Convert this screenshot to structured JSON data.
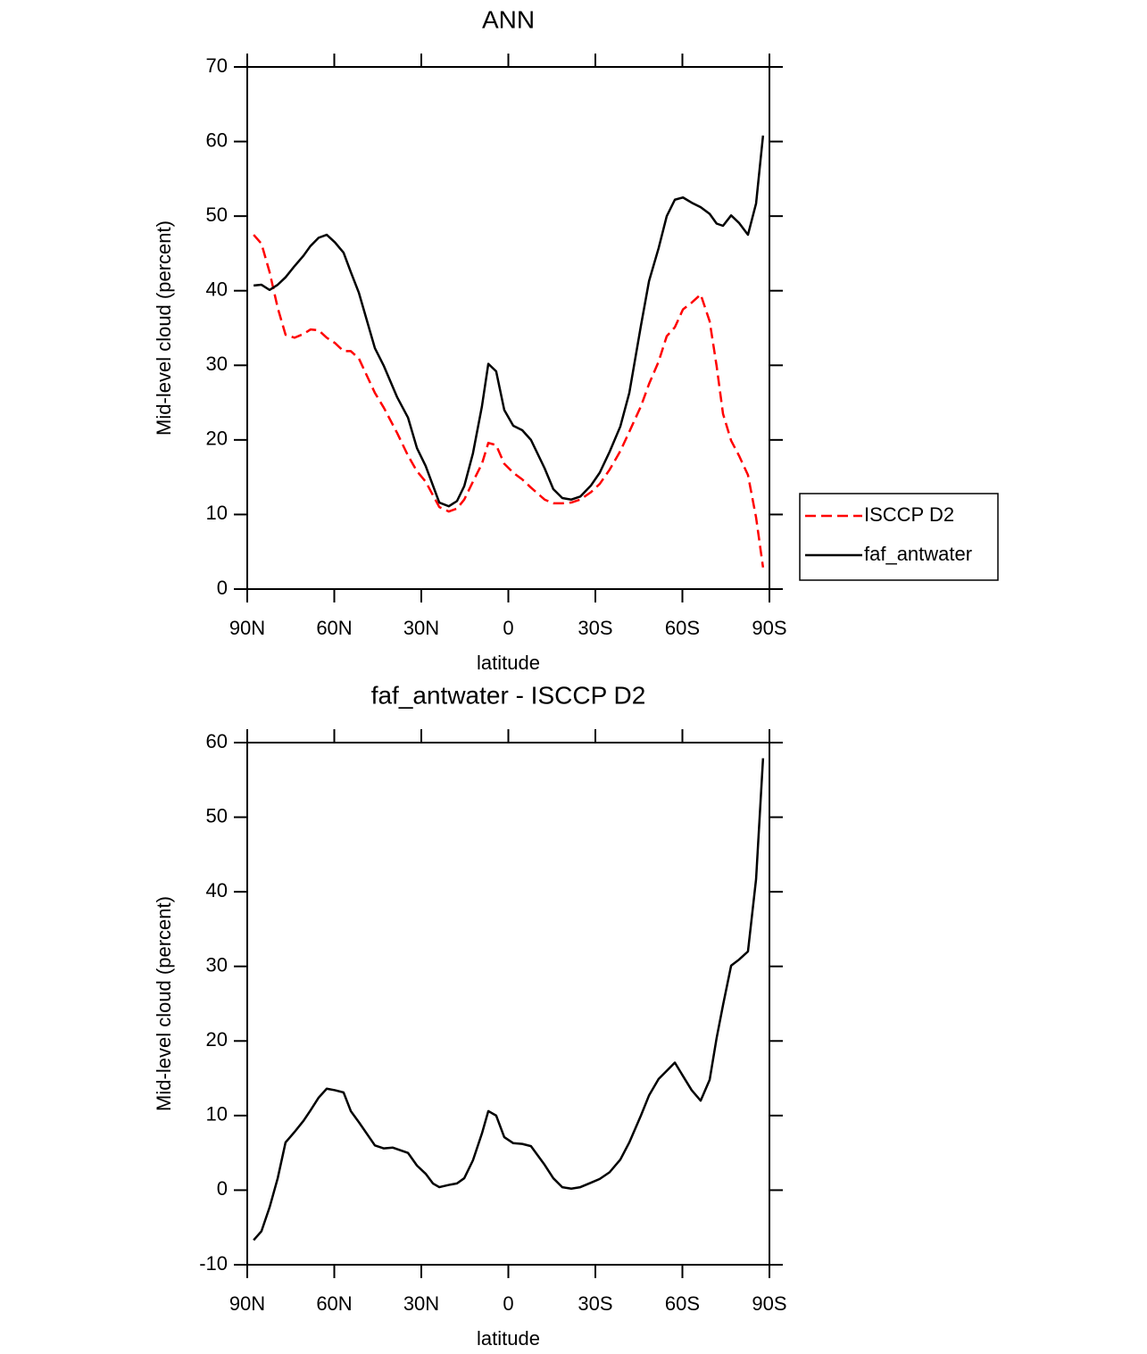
{
  "chart_data": [
    {
      "type": "line",
      "title": "ANN",
      "xlabel": "latitude",
      "ylabel": "Mid-level cloud (percent)",
      "x": [
        87.8,
        85.1,
        82.3,
        79.5,
        76.8,
        73.7,
        70.6,
        68.2,
        65.4,
        62.6,
        59.8,
        56.8,
        54.3,
        51.5,
        46.0,
        42.9,
        38.3,
        34.6,
        31.5,
        28.5,
        23.8,
        20.5,
        17.7,
        15.2,
        12.2,
        9.1,
        6.9,
        4.2,
        1.4,
        -1.7,
        -4.8,
        -7.8,
        -12.5,
        -15.5,
        -18.6,
        -21.7,
        -24.8,
        -28.5,
        -31.5,
        -34.9,
        -38.6,
        -41.7,
        -45.7,
        -48.5,
        -51.8,
        -54.6,
        -57.4,
        -60.2,
        -63.2,
        -66.3,
        -69.4,
        -71.8,
        -74,
        -76.8,
        -79.5,
        -82.6,
        -85.4,
        -87.8
      ],
      "series": [
        {
          "name": "ISCCP D2",
          "color": "#ff0000",
          "dash": true,
          "values": [
            47.5,
            46.3,
            42.5,
            37.7,
            34.1,
            33.7,
            34.2,
            34.8,
            34.7,
            33.7,
            33,
            31.9,
            31.9,
            30.9,
            26.3,
            24.3,
            20.9,
            17.9,
            15.8,
            14.4,
            11,
            10.4,
            10.8,
            12,
            14.4,
            16.8,
            19.6,
            19.3,
            16.8,
            15.6,
            14.7,
            13.6,
            12,
            11.5,
            11.5,
            11.6,
            12,
            13,
            14.1,
            16,
            18.5,
            21.1,
            24.5,
            27.5,
            30.5,
            33.9,
            35.1,
            37.5,
            38.4,
            39.5,
            35.9,
            29.9,
            23.5,
            19.9,
            17.9,
            15.3,
            9.6,
            2.9
          ]
        },
        {
          "name": "faf_antwater",
          "color": "#000000",
          "dash": false,
          "values": [
            40.7,
            40.8,
            40.1,
            40.8,
            41.8,
            43.3,
            44.7,
            46.0,
            47.1,
            47.5,
            46.5,
            45.1,
            42.5,
            39.7,
            32.3,
            29.9,
            25.7,
            23,
            18.9,
            16.5,
            11.6,
            11.1,
            11.8,
            13.8,
            18.2,
            24.5,
            30.2,
            29.2,
            24,
            21.9,
            21.3,
            20,
            16.2,
            13.4,
            12.2,
            12,
            12.4,
            13.9,
            15.6,
            18.4,
            21.8,
            26.3,
            35.3,
            41.3,
            45.7,
            50,
            52.2,
            52.5,
            51.8,
            51.2,
            50.3,
            49,
            48.7,
            50.1,
            49.1,
            47.5,
            51.7,
            60.8
          ]
        }
      ],
      "xlim": [
        90,
        -90
      ],
      "xticks": [
        {
          "value": 90,
          "label": "90N"
        },
        {
          "value": 60,
          "label": "60N"
        },
        {
          "value": 30,
          "label": "30N"
        },
        0,
        {
          "value": -30,
          "label": "30S"
        },
        {
          "value": -60,
          "label": "60S"
        },
        {
          "value": -90,
          "label": "90S"
        }
      ],
      "ylim": [
        0,
        70
      ],
      "yticks": [
        0,
        10,
        20,
        30,
        40,
        50,
        60,
        70
      ],
      "legend": "right"
    },
    {
      "type": "line",
      "title": "faf_antwater - ISCCP D2",
      "xlabel": "latitude",
      "ylabel": "Mid-level cloud (percent)",
      "x": [
        87.8,
        85.1,
        82.3,
        79.5,
        76.8,
        73.7,
        70.6,
        68.2,
        65.4,
        62.6,
        59.8,
        56.8,
        54.3,
        51.5,
        46.0,
        42.9,
        39.8,
        34.6,
        31.5,
        28.5,
        26.0,
        23.8,
        20.5,
        17.7,
        15.2,
        12.2,
        9.1,
        6.9,
        4.2,
        1.4,
        -1.7,
        -4.8,
        -7.8,
        -12.5,
        -15.5,
        -18.6,
        -21.7,
        -24.8,
        -28.5,
        -31.5,
        -34.9,
        -38.6,
        -41.7,
        -45.7,
        -48.5,
        -51.8,
        -54.6,
        -57.4,
        -60.2,
        -63.2,
        -66.3,
        -69.4,
        -71.8,
        -74,
        -76.8,
        -79.5,
        -82.6,
        -85.4,
        -87.8
      ],
      "series": [
        {
          "color": "#000000",
          "dash": false,
          "values": [
            -6.7,
            -5.5,
            -2.3,
            1.6,
            6.4,
            7.8,
            9.3,
            10.7,
            12.4,
            13.6,
            13.4,
            13.1,
            10.6,
            9.1,
            6,
            5.6,
            5.7,
            5,
            3.3,
            2.2,
            0.9,
            0.4,
            0.7,
            0.9,
            1.6,
            4,
            7.6,
            10.6,
            10,
            7.1,
            6.3,
            6.2,
            5.9,
            3.4,
            1.6,
            0.4,
            0.2,
            0.4,
            1,
            1.5,
            2.4,
            4.1,
            6.4,
            10,
            12.7,
            14.9,
            16,
            17.1,
            15.3,
            13.4,
            12,
            14.8,
            20.4,
            24.8,
            30.1,
            30.9,
            32,
            41.7,
            57.9
          ]
        }
      ],
      "xlim": [
        90,
        -90
      ],
      "xticks": [
        {
          "value": 90,
          "label": "90N"
        },
        {
          "value": 60,
          "label": "60N"
        },
        {
          "value": 30,
          "label": "30N"
        },
        0,
        {
          "value": -30,
          "label": "30S"
        },
        {
          "value": -60,
          "label": "60S"
        },
        {
          "value": -90,
          "label": "90S"
        }
      ],
      "ylim": [
        -10,
        60
      ],
      "yticks": [
        -10,
        0,
        10,
        20,
        30,
        40,
        50,
        60
      ]
    }
  ]
}
